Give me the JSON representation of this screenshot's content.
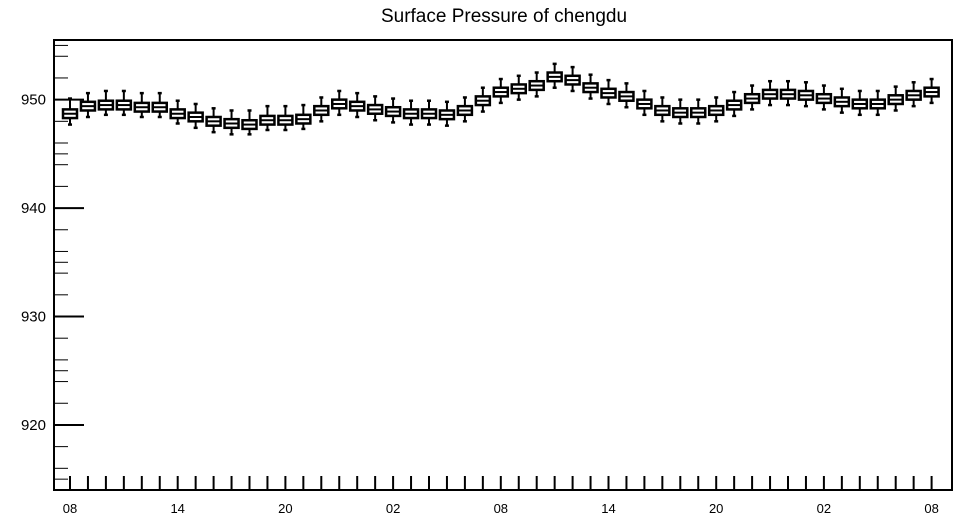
{
  "chart_data": {
    "type": "box",
    "title": "Surface Pressure of chengdu",
    "xlabel": "",
    "ylabel": "",
    "ylim": [
      914,
      955.5
    ],
    "yticks": [
      920,
      930,
      940,
      950
    ],
    "xtick_labels": [
      "08",
      "14",
      "20",
      "02",
      "08",
      "14",
      "20",
      "02",
      "08"
    ],
    "grid": false,
    "legend": "none",
    "box_color": "#000000",
    "series": [
      {
        "median": [
          948.7,
          949.4,
          949.5,
          949.5,
          949.3,
          949.3,
          948.7,
          948.4,
          948.0,
          947.8,
          947.7,
          948.1,
          948.1,
          948.2,
          949.0,
          949.6,
          949.4,
          949.1,
          948.9,
          948.7,
          948.7,
          948.6,
          949.0,
          949.9,
          950.7,
          951.0,
          951.3,
          952.1,
          951.8,
          951.1,
          950.6,
          950.3,
          949.6,
          949.0,
          948.8,
          948.8,
          949.0,
          949.5,
          950.1,
          950.5,
          950.5,
          950.4,
          950.1,
          949.8,
          949.6,
          949.6,
          950.0,
          950.4,
          950.7
        ],
        "q1": [
          948.3,
          949.0,
          949.1,
          949.1,
          948.9,
          948.9,
          948.3,
          948.0,
          947.6,
          947.4,
          947.3,
          947.7,
          947.7,
          947.8,
          948.6,
          949.2,
          949.0,
          948.7,
          948.5,
          948.3,
          948.3,
          948.2,
          948.6,
          949.5,
          950.3,
          950.6,
          950.9,
          951.7,
          951.4,
          950.7,
          950.2,
          949.9,
          949.2,
          948.6,
          948.4,
          948.4,
          948.6,
          949.1,
          949.7,
          950.1,
          950.1,
          950.0,
          949.7,
          949.4,
          949.2,
          949.2,
          949.6,
          950.0,
          950.3
        ],
        "q3": [
          949.1,
          949.8,
          949.9,
          949.9,
          949.7,
          949.7,
          949.1,
          948.8,
          948.4,
          948.2,
          948.1,
          948.5,
          948.5,
          948.6,
          949.4,
          950.0,
          949.8,
          949.5,
          949.3,
          949.1,
          949.1,
          949.0,
          949.4,
          950.3,
          951.1,
          951.4,
          951.7,
          952.5,
          952.2,
          951.5,
          951.0,
          950.7,
          950.0,
          949.4,
          949.2,
          949.2,
          949.4,
          949.9,
          950.5,
          950.9,
          950.9,
          950.8,
          950.5,
          950.2,
          950.0,
          950.0,
          950.4,
          950.8,
          951.1
        ],
        "low": [
          947.7,
          948.4,
          948.6,
          948.6,
          948.4,
          948.4,
          947.8,
          947.4,
          947.0,
          946.8,
          946.8,
          947.2,
          947.2,
          947.3,
          948.0,
          948.6,
          948.4,
          948.1,
          947.9,
          947.7,
          947.7,
          947.6,
          948.0,
          948.9,
          949.7,
          950.0,
          950.3,
          951.1,
          950.8,
          950.1,
          949.6,
          949.3,
          948.6,
          948.0,
          947.8,
          947.8,
          948.0,
          948.5,
          949.1,
          949.5,
          949.5,
          949.4,
          949.1,
          948.8,
          948.6,
          948.6,
          949.0,
          949.4,
          949.7
        ],
        "high": [
          950.1,
          950.6,
          950.8,
          950.8,
          950.6,
          950.6,
          949.9,
          949.6,
          949.2,
          949.0,
          949.0,
          949.4,
          949.4,
          949.5,
          950.2,
          950.8,
          950.6,
          950.3,
          950.1,
          949.9,
          949.9,
          949.8,
          950.2,
          951.1,
          951.9,
          952.2,
          952.5,
          953.3,
          953.0,
          952.3,
          951.8,
          951.5,
          950.8,
          950.2,
          950.0,
          950.0,
          950.2,
          950.7,
          951.3,
          951.7,
          951.7,
          951.6,
          951.3,
          951.0,
          950.8,
          950.8,
          951.2,
          951.6,
          951.9
        ]
      }
    ]
  }
}
